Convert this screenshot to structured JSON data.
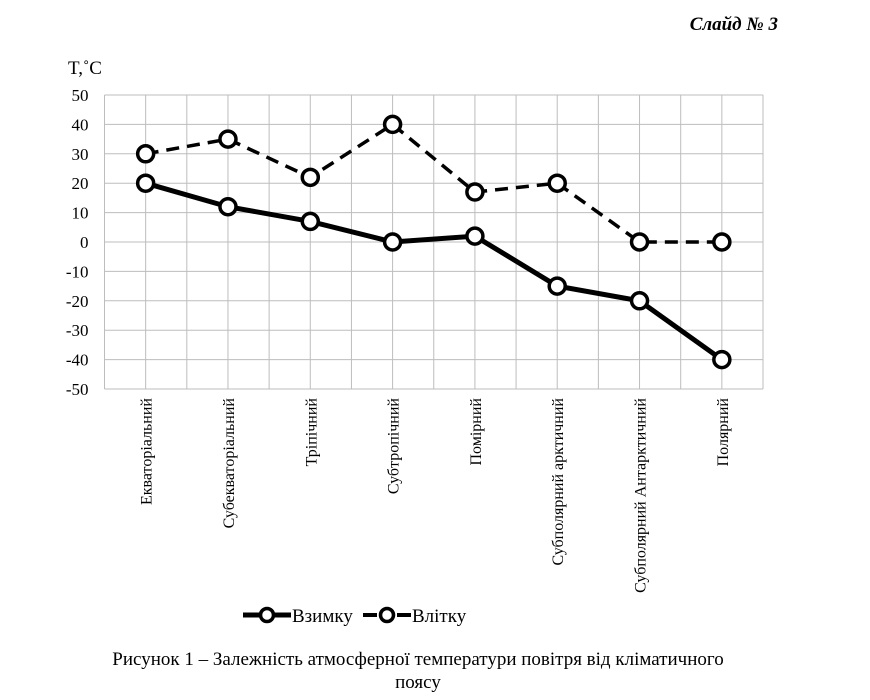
{
  "slide_label": "Слайд № 3",
  "chart_data": {
    "type": "line",
    "title": "",
    "ylabel": "T,˚C",
    "xlabel": "",
    "ylim": [
      -50,
      50
    ],
    "yticks": [
      50,
      40,
      30,
      20,
      10,
      0,
      -10,
      -20,
      -30,
      -40,
      -50
    ],
    "grid": true,
    "legend_position": "bottom",
    "categories": [
      "Екваторіальний",
      "Субекваторіальний",
      "Тріпічний",
      "Субтропічний",
      "Помірний",
      "Субполярний арктичний",
      "Субполярний Антарктичний",
      "Полярний"
    ],
    "series": [
      {
        "name": "Взимку",
        "style": "solid",
        "values": [
          20,
          12,
          7,
          0,
          2,
          -15,
          -20,
          -40
        ]
      },
      {
        "name": "Влітку",
        "style": "dashed",
        "values": [
          30,
          35,
          22,
          40,
          17,
          20,
          0,
          0
        ]
      }
    ]
  },
  "caption": {
    "line1": "Рисунок 1 – Залежність атмосферної температури повітря від кліматичного",
    "line2": "поясу"
  }
}
